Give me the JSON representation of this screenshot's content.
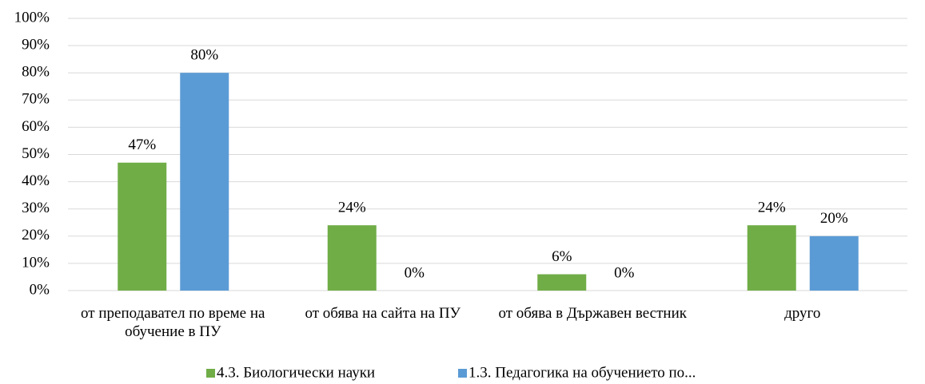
{
  "chart_data": {
    "type": "bar",
    "categories": [
      "от преподавател по време на обучение в ПУ",
      "от обява на сайта на ПУ",
      "от обява в Държавен вестник",
      "друго"
    ],
    "series": [
      {
        "name": "4.3. Биологически науки",
        "color": "#70ad47",
        "values": [
          47,
          24,
          6,
          24
        ],
        "value_labels": [
          "47%",
          "24%",
          "6%",
          "24%"
        ]
      },
      {
        "name": "1.3. Педагогика на обучението по...",
        "color": "#5b9bd5",
        "values": [
          80,
          0,
          0,
          20
        ],
        "value_labels": [
          "80%",
          "0%",
          "0%",
          "20%"
        ]
      }
    ],
    "ylim": [
      0,
      100
    ],
    "yticks": [
      {
        "value": 0,
        "label": "0%"
      },
      {
        "value": 10,
        "label": "10%"
      },
      {
        "value": 20,
        "label": "20%"
      },
      {
        "value": 30,
        "label": "30%"
      },
      {
        "value": 40,
        "label": "40%"
      },
      {
        "value": 50,
        "label": "50%"
      },
      {
        "value": 60,
        "label": "60%"
      },
      {
        "value": 70,
        "label": "70%"
      },
      {
        "value": 80,
        "label": "80%"
      },
      {
        "value": 90,
        "label": "90%"
      },
      {
        "value": 100,
        "label": "100%"
      }
    ],
    "grid": true,
    "legend": "bottom"
  }
}
